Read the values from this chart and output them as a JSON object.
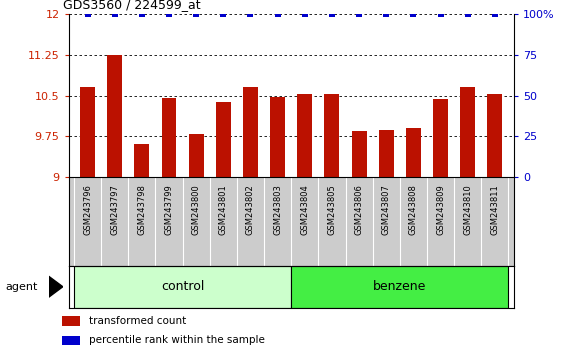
{
  "title": "GDS3560 / 224599_at",
  "samples": [
    "GSM243796",
    "GSM243797",
    "GSM243798",
    "GSM243799",
    "GSM243800",
    "GSM243801",
    "GSM243802",
    "GSM243803",
    "GSM243804",
    "GSM243805",
    "GSM243806",
    "GSM243807",
    "GSM243808",
    "GSM243809",
    "GSM243810",
    "GSM243811"
  ],
  "values": [
    10.65,
    11.25,
    9.6,
    10.45,
    9.8,
    10.38,
    10.65,
    10.47,
    10.52,
    10.52,
    9.85,
    9.87,
    9.9,
    10.43,
    10.65,
    10.52
  ],
  "bar_color": "#bb1100",
  "percentile_color": "#0000cc",
  "ylim_left": [
    9.0,
    12.0
  ],
  "ylim_right": [
    0,
    100
  ],
  "yticks_left": [
    9.0,
    9.75,
    10.5,
    11.25,
    12.0
  ],
  "ytick_labels_left": [
    "9",
    "9.75",
    "10.5",
    "11.25",
    "12"
  ],
  "yticks_right": [
    0,
    25,
    50,
    75,
    100
  ],
  "ytick_labels_right": [
    "0",
    "25",
    "50",
    "75",
    "100%"
  ],
  "groups": [
    {
      "label": "control",
      "start": 0,
      "end": 8,
      "color": "#ccffcc"
    },
    {
      "label": "benzene",
      "start": 8,
      "end": 16,
      "color": "#44ee44"
    }
  ],
  "agent_label": "agent",
  "legend_items": [
    {
      "label": "transformed count",
      "color": "#bb1100"
    },
    {
      "label": "percentile rank within the sample",
      "color": "#0000cc"
    }
  ],
  "background_color": "#ffffff",
  "bar_bottom": 9.0,
  "tick_label_color_left": "#cc2200",
  "tick_label_color_right": "#0000cc",
  "sample_cell_color": "#cccccc",
  "n_samples": 16,
  "control_count": 8
}
